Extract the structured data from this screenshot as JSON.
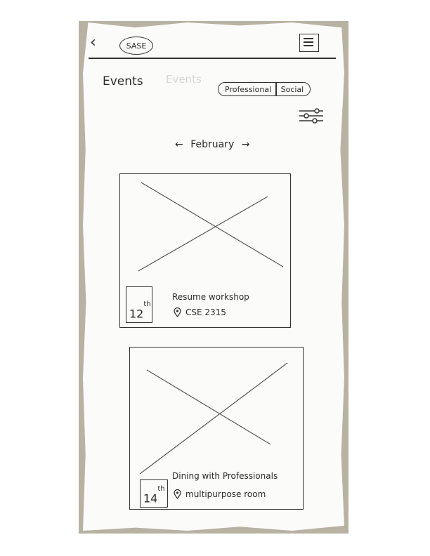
{
  "header": {
    "back_icon": "chevron-left-icon",
    "logo_text": "SASE",
    "menu_icon": "hamburger-menu-icon"
  },
  "page": {
    "title": "Events",
    "ghost_text": "Events"
  },
  "filter_tabs": [
    "Professional",
    "Social"
  ],
  "filter_icon": "sliders-icon",
  "month_nav": {
    "prev_icon": "arrow-left-icon",
    "month": "February",
    "next_icon": "arrow-right-icon"
  },
  "events": [
    {
      "day": "12",
      "suffix": "th",
      "title": "Resume workshop",
      "location": "CSE 2315",
      "location_icon": "location-pin-icon",
      "image": "image-placeholder"
    },
    {
      "day": "14",
      "suffix": "th",
      "title": "Dining with Professionals",
      "location": "multipurpose room",
      "location_icon": "location-pin-icon",
      "image": "image-placeholder"
    }
  ],
  "colors": {
    "ink": "#2b2b2b",
    "paper": "#fbfbfa",
    "backdrop": "#b8b2a2"
  }
}
